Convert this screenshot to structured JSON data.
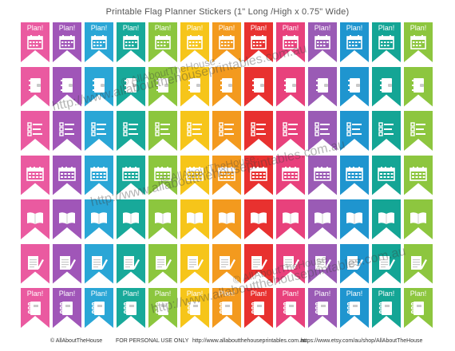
{
  "title": "Printable Flag Planner Stickers  (1\" Long /High x 0.75\" Wide)",
  "flag_label": "Plan!",
  "colors": [
    "#ea5aa0",
    "#a056b8",
    "#2aa6d6",
    "#18a99a",
    "#8cc63e",
    "#f6c51a",
    "#f39a1e",
    "#e8312f",
    "#e8417c",
    "#9a5bb5",
    "#1f95cf",
    "#14a595",
    "#8dc63f"
  ],
  "rows": [
    {
      "icon": "calendar-icon",
      "label": true
    },
    {
      "icon": "planner-book-icon",
      "label": false
    },
    {
      "icon": "checklist-icon",
      "label": false
    },
    {
      "icon": "calendar-grid-icon",
      "label": false
    },
    {
      "icon": "open-book-icon",
      "label": false
    },
    {
      "icon": "notepad-pencil-icon",
      "label": false
    },
    {
      "icon": "spiral-planner-icon",
      "label": true
    }
  ],
  "watermarks": {
    "url": "http://www.allaboutthehouseprintables.com.au",
    "brand": "© AllAboutTheHouse"
  },
  "footer": {
    "copyright": "© AllAboutTheHouse",
    "personal": "FOR PERSONAL USE ONLY",
    "website": "http://www.allaboutthehouseprintables.com.au",
    "etsy": "https://www.etsy.com/au/shop/AllAboutTheHouse"
  }
}
